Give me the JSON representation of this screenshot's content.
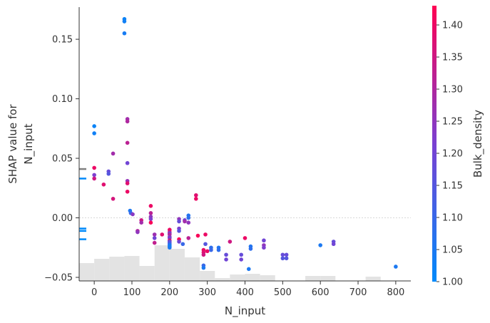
{
  "chart_data": {
    "type": "scatter",
    "subtype": "shap-dependence",
    "xlabel": "N_input",
    "ylabel_lines": [
      "SHAP value for",
      "N_input"
    ],
    "colorbar_label": "Bulk_density",
    "xlim": [
      -40,
      840
    ],
    "ylim": [
      -0.053,
      0.177
    ],
    "x_ticks": [
      0,
      100,
      200,
      300,
      400,
      500,
      600,
      700,
      800
    ],
    "y_ticks": [
      -0.05,
      0.0,
      0.05,
      0.1,
      0.15
    ],
    "y_tick_labels": [
      "−0.05",
      "0.00",
      "0.05",
      "0.10",
      "0.15"
    ],
    "colorbar": {
      "min": 1.0,
      "max": 1.43,
      "ticks": [
        1.0,
        1.05,
        1.1,
        1.15,
        1.2,
        1.25,
        1.3,
        1.35,
        1.4
      ],
      "tick_labels": [
        "1.00",
        "1.05",
        "1.10",
        "1.15",
        "1.20",
        "1.25",
        "1.30",
        "1.35",
        "1.40"
      ],
      "colors": [
        "#008afb",
        "#7a40d2",
        "#ff0052"
      ]
    },
    "zero_line": true,
    "grid": false,
    "histogram": {
      "bin_starts": [
        -40,
        0,
        40,
        80,
        120,
        160,
        200,
        240,
        280,
        320,
        360,
        400,
        440,
        480,
        520,
        560,
        600,
        640,
        680,
        720,
        760,
        800
      ],
      "bin_width": 40,
      "heights": [
        0.5,
        0.62,
        0.68,
        0.7,
        0.42,
        1.0,
        0.9,
        0.66,
        0.28,
        0.08,
        0.18,
        0.2,
        0.16,
        0.0,
        0.0,
        0.14,
        0.14,
        0.0,
        0.0,
        0.12,
        0.0,
        0.0
      ]
    },
    "marginal_ticks": [
      {
        "y": 0.041,
        "color": "#808080"
      },
      {
        "y": 0.033,
        "color": "#008afb"
      },
      {
        "y": -0.009,
        "color": "#008afb"
      },
      {
        "y": -0.011,
        "color": "#008afb"
      },
      {
        "y": -0.018,
        "color": "#008afb"
      }
    ],
    "points": [
      {
        "x": 0,
        "y": 0.077,
        "c": 1.02
      },
      {
        "x": 0,
        "y": 0.071,
        "c": 1.03
      },
      {
        "x": 0,
        "y": 0.042,
        "c": 1.4
      },
      {
        "x": 0,
        "y": 0.036,
        "c": 1.22
      },
      {
        "x": 0,
        "y": 0.033,
        "c": 1.35
      },
      {
        "x": 25,
        "y": 0.028,
        "c": 1.38
      },
      {
        "x": 38,
        "y": 0.039,
        "c": 1.18
      },
      {
        "x": 38,
        "y": 0.037,
        "c": 1.15
      },
      {
        "x": 50,
        "y": 0.054,
        "c": 1.28
      },
      {
        "x": 50,
        "y": 0.016,
        "c": 1.36
      },
      {
        "x": 80,
        "y": 0.167,
        "c": 1.02
      },
      {
        "x": 80,
        "y": 0.165,
        "c": 1.03
      },
      {
        "x": 80,
        "y": 0.155,
        "c": 1.04
      },
      {
        "x": 88,
        "y": 0.083,
        "c": 1.28
      },
      {
        "x": 88,
        "y": 0.081,
        "c": 1.3
      },
      {
        "x": 88,
        "y": 0.063,
        "c": 1.32
      },
      {
        "x": 88,
        "y": 0.046,
        "c": 1.2
      },
      {
        "x": 88,
        "y": 0.031,
        "c": 1.26
      },
      {
        "x": 88,
        "y": 0.029,
        "c": 1.38
      },
      {
        "x": 88,
        "y": 0.022,
        "c": 1.4
      },
      {
        "x": 95,
        "y": 0.006,
        "c": 1.05
      },
      {
        "x": 97,
        "y": 0.004,
        "c": 1.1
      },
      {
        "x": 102,
        "y": 0.003,
        "c": 1.24
      },
      {
        "x": 115,
        "y": -0.011,
        "c": 1.3
      },
      {
        "x": 115,
        "y": -0.012,
        "c": 1.25
      },
      {
        "x": 125,
        "y": -0.002,
        "c": 1.35
      },
      {
        "x": 125,
        "y": -0.004,
        "c": 1.28
      },
      {
        "x": 150,
        "y": 0.01,
        "c": 1.4
      },
      {
        "x": 150,
        "y": 0.004,
        "c": 1.32
      },
      {
        "x": 150,
        "y": 0.001,
        "c": 1.25
      },
      {
        "x": 150,
        "y": -0.001,
        "c": 1.22
      },
      {
        "x": 150,
        "y": -0.004,
        "c": 1.42
      },
      {
        "x": 160,
        "y": -0.014,
        "c": 1.27
      },
      {
        "x": 160,
        "y": -0.017,
        "c": 1.2
      },
      {
        "x": 160,
        "y": -0.021,
        "c": 1.33
      },
      {
        "x": 180,
        "y": -0.014,
        "c": 1.38
      },
      {
        "x": 200,
        "y": -0.01,
        "c": 1.4
      },
      {
        "x": 200,
        "y": -0.012,
        "c": 1.35
      },
      {
        "x": 200,
        "y": -0.013,
        "c": 1.2
      },
      {
        "x": 200,
        "y": -0.014,
        "c": 1.3
      },
      {
        "x": 200,
        "y": -0.016,
        "c": 1.25
      },
      {
        "x": 200,
        "y": -0.017,
        "c": 1.22
      },
      {
        "x": 200,
        "y": -0.019,
        "c": 1.38
      },
      {
        "x": 200,
        "y": -0.02,
        "c": 1.15
      },
      {
        "x": 200,
        "y": -0.021,
        "c": 1.18
      },
      {
        "x": 200,
        "y": -0.022,
        "c": 1.1
      },
      {
        "x": 200,
        "y": -0.023,
        "c": 1.06
      },
      {
        "x": 200,
        "y": -0.024,
        "c": 1.03
      },
      {
        "x": 200,
        "y": -0.025,
        "c": 1.05
      },
      {
        "x": 225,
        "y": -0.001,
        "c": 1.25
      },
      {
        "x": 225,
        "y": -0.003,
        "c": 1.18
      },
      {
        "x": 225,
        "y": -0.009,
        "c": 1.22
      },
      {
        "x": 225,
        "y": -0.011,
        "c": 1.15
      },
      {
        "x": 225,
        "y": -0.018,
        "c": 1.42
      },
      {
        "x": 225,
        "y": -0.02,
        "c": 1.2
      },
      {
        "x": 235,
        "y": -0.022,
        "c": 1.1
      },
      {
        "x": 240,
        "y": -0.002,
        "c": 1.2
      },
      {
        "x": 240,
        "y": -0.003,
        "c": 1.28
      },
      {
        "x": 250,
        "y": 0.002,
        "c": 1.06
      },
      {
        "x": 250,
        "y": 0.0,
        "c": 1.08
      },
      {
        "x": 250,
        "y": -0.004,
        "c": 1.25
      },
      {
        "x": 250,
        "y": -0.017,
        "c": 1.32
      },
      {
        "x": 270,
        "y": 0.019,
        "c": 1.38
      },
      {
        "x": 270,
        "y": 0.016,
        "c": 1.4
      },
      {
        "x": 275,
        "y": -0.015,
        "c": 1.42
      },
      {
        "x": 290,
        "y": -0.027,
        "c": 1.4
      },
      {
        "x": 290,
        "y": -0.029,
        "c": 1.38
      },
      {
        "x": 290,
        "y": -0.031,
        "c": 1.35
      },
      {
        "x": 290,
        "y": -0.04,
        "c": 1.1
      },
      {
        "x": 290,
        "y": -0.042,
        "c": 1.05
      },
      {
        "x": 295,
        "y": -0.014,
        "c": 1.4
      },
      {
        "x": 295,
        "y": -0.022,
        "c": 1.15
      },
      {
        "x": 300,
        "y": -0.028,
        "c": 1.4
      },
      {
        "x": 310,
        "y": -0.025,
        "c": 1.08
      },
      {
        "x": 310,
        "y": -0.027,
        "c": 1.1
      },
      {
        "x": 330,
        "y": -0.025,
        "c": 1.06
      },
      {
        "x": 330,
        "y": -0.027,
        "c": 1.08
      },
      {
        "x": 350,
        "y": -0.031,
        "c": 1.18
      },
      {
        "x": 350,
        "y": -0.035,
        "c": 1.2
      },
      {
        "x": 360,
        "y": -0.02,
        "c": 1.35
      },
      {
        "x": 390,
        "y": -0.031,
        "c": 1.18
      },
      {
        "x": 390,
        "y": -0.035,
        "c": 1.2
      },
      {
        "x": 400,
        "y": -0.017,
        "c": 1.4
      },
      {
        "x": 410,
        "y": -0.043,
        "c": 1.05
      },
      {
        "x": 415,
        "y": -0.024,
        "c": 1.06
      },
      {
        "x": 415,
        "y": -0.026,
        "c": 1.08
      },
      {
        "x": 450,
        "y": -0.019,
        "c": 1.2
      },
      {
        "x": 450,
        "y": -0.023,
        "c": 1.25
      },
      {
        "x": 450,
        "y": -0.025,
        "c": 1.22
      },
      {
        "x": 500,
        "y": -0.031,
        "c": 1.18
      },
      {
        "x": 500,
        "y": -0.034,
        "c": 1.15
      },
      {
        "x": 510,
        "y": -0.031,
        "c": 1.18
      },
      {
        "x": 510,
        "y": -0.034,
        "c": 1.15
      },
      {
        "x": 600,
        "y": -0.023,
        "c": 1.05
      },
      {
        "x": 635,
        "y": -0.02,
        "c": 1.18
      },
      {
        "x": 635,
        "y": -0.022,
        "c": 1.2
      },
      {
        "x": 800,
        "y": -0.041,
        "c": 1.05
      }
    ]
  }
}
